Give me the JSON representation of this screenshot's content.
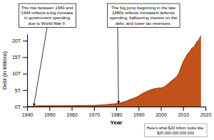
{
  "chart_data": {
    "type": "area",
    "xlabel": "Year",
    "ylabel": "Debt (in trillions)",
    "color": "#C0521A",
    "grid": false,
    "xlim": [
      1940,
      2020
    ],
    "ylim": [
      0,
      22
    ],
    "xticks": [
      1940,
      1950,
      1960,
      1970,
      1980,
      1990,
      2000,
      2010,
      2020
    ],
    "yticks": [
      {
        "value": 0,
        "label": "0T"
      },
      {
        "value": 5,
        "label": "5T"
      },
      {
        "value": 10,
        "label": "10T"
      },
      {
        "value": 15,
        "label": "15T"
      },
      {
        "value": 20,
        "label": "20T"
      }
    ],
    "x": [
      1940,
      1941,
      1942,
      1943,
      1944,
      1945,
      1946,
      1947,
      1948,
      1949,
      1950,
      1951,
      1952,
      1953,
      1954,
      1955,
      1956,
      1957,
      1958,
      1959,
      1960,
      1961,
      1962,
      1963,
      1964,
      1965,
      1966,
      1967,
      1968,
      1969,
      1970,
      1971,
      1972,
      1973,
      1974,
      1975,
      1976,
      1977,
      1978,
      1979,
      1980,
      1981,
      1982,
      1983,
      1984,
      1985,
      1986,
      1987,
      1988,
      1989,
      1990,
      1991,
      1992,
      1993,
      1994,
      1995,
      1996,
      1997,
      1998,
      1999,
      2000,
      2001,
      2002,
      2003,
      2004,
      2005,
      2006,
      2007,
      2008,
      2009,
      2010,
      2011,
      2012,
      2013,
      2014,
      2015,
      2016,
      2017,
      2018
    ],
    "values": [
      0.051,
      0.057,
      0.079,
      0.137,
      0.201,
      0.259,
      0.269,
      0.258,
      0.252,
      0.253,
      0.257,
      0.255,
      0.267,
      0.275,
      0.271,
      0.274,
      0.273,
      0.272,
      0.28,
      0.285,
      0.291,
      0.293,
      0.303,
      0.311,
      0.317,
      0.323,
      0.32,
      0.341,
      0.369,
      0.354,
      0.381,
      0.409,
      0.437,
      0.468,
      0.486,
      0.542,
      0.629,
      0.707,
      0.777,
      0.829,
      0.908,
      0.998,
      1.142,
      1.377,
      1.572,
      1.823,
      2.125,
      2.34,
      2.602,
      2.868,
      3.233,
      3.665,
      4.065,
      4.411,
      4.693,
      4.974,
      5.225,
      5.413,
      5.526,
      5.656,
      5.674,
      5.807,
      6.228,
      6.783,
      7.379,
      7.933,
      8.507,
      9.008,
      10.025,
      11.91,
      13.562,
      14.79,
      16.066,
      16.738,
      17.824,
      18.151,
      19.573,
      20.245,
      21.516
    ],
    "annotations": [
      {
        "text": "The rise between 1940 and\n1944 reflects a big increase\nin government spending\ndue to World War II.",
        "x": 1943,
        "y": 0.18
      },
      {
        "text": "The big jump beginning in the late\n1980s reflects increased defense\nspending, ballooning interest on the\ndebt, and lower tax revenues.",
        "x": 1981,
        "y": 0.95
      }
    ],
    "note": "Here's what $20 trillion looks like:\n$20,000,000,000,000"
  }
}
